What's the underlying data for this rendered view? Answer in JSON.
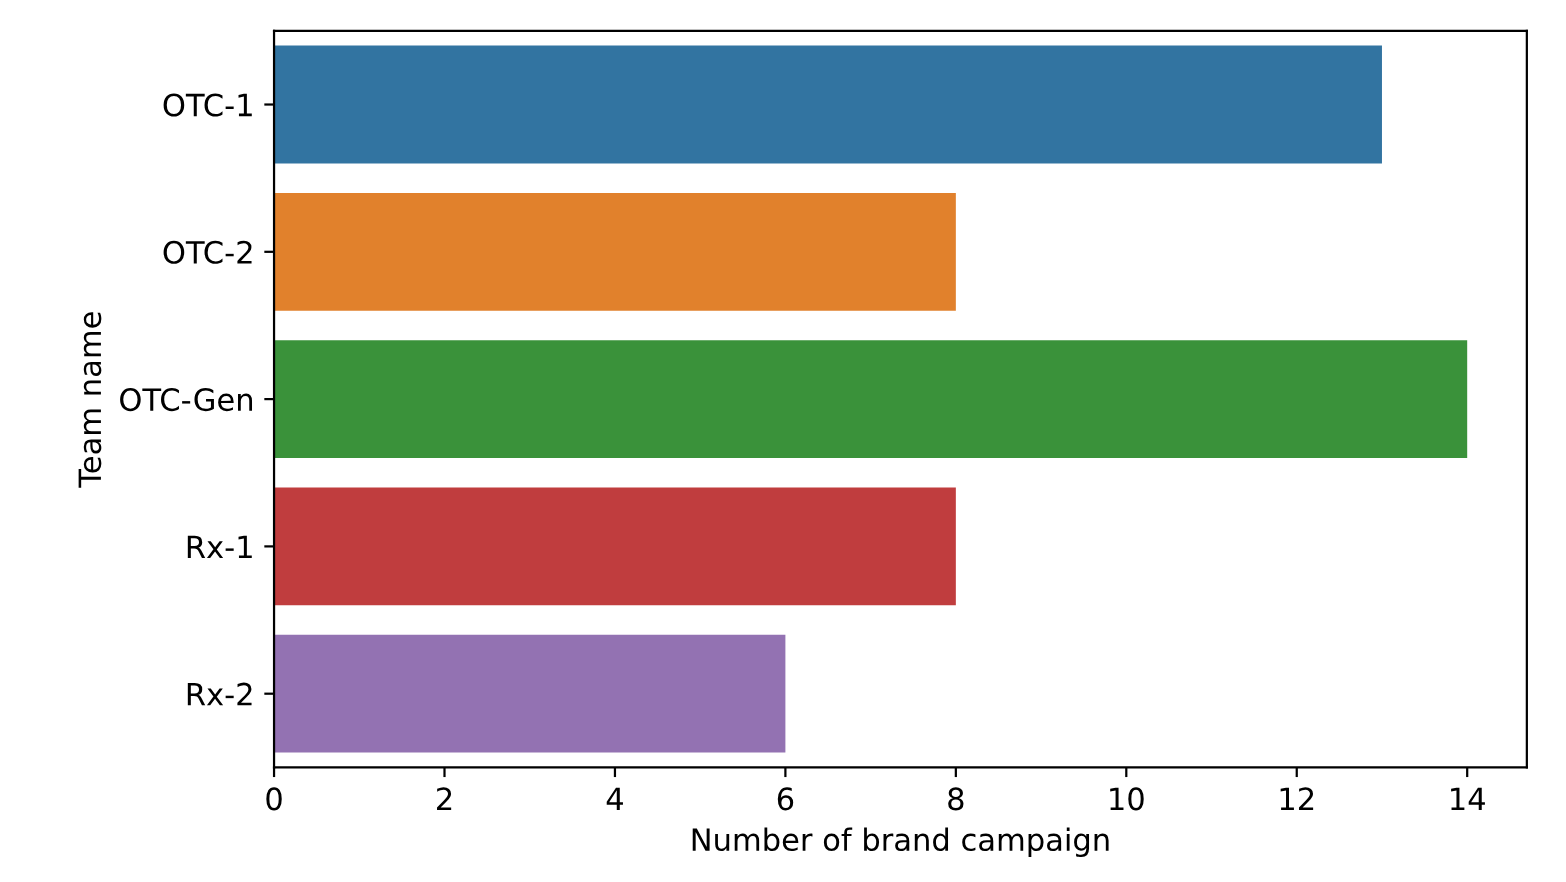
{
  "chart_data": {
    "type": "bar",
    "orientation": "horizontal",
    "categories": [
      "OTC-1",
      "OTC-2",
      "OTC-Gen",
      "Rx-1",
      "Rx-2"
    ],
    "values": [
      13,
      8,
      14,
      8,
      6
    ],
    "colors": [
      "#3274a1",
      "#e1812c",
      "#3a923a",
      "#c03d3e",
      "#9372b2"
    ],
    "xlabel": "Number of brand campaign",
    "ylabel": "Team name",
    "xlim": [
      0,
      14.7
    ],
    "xticks": [
      0,
      2,
      4,
      6,
      8,
      10,
      12,
      14
    ],
    "grid": false,
    "legend": false
  }
}
